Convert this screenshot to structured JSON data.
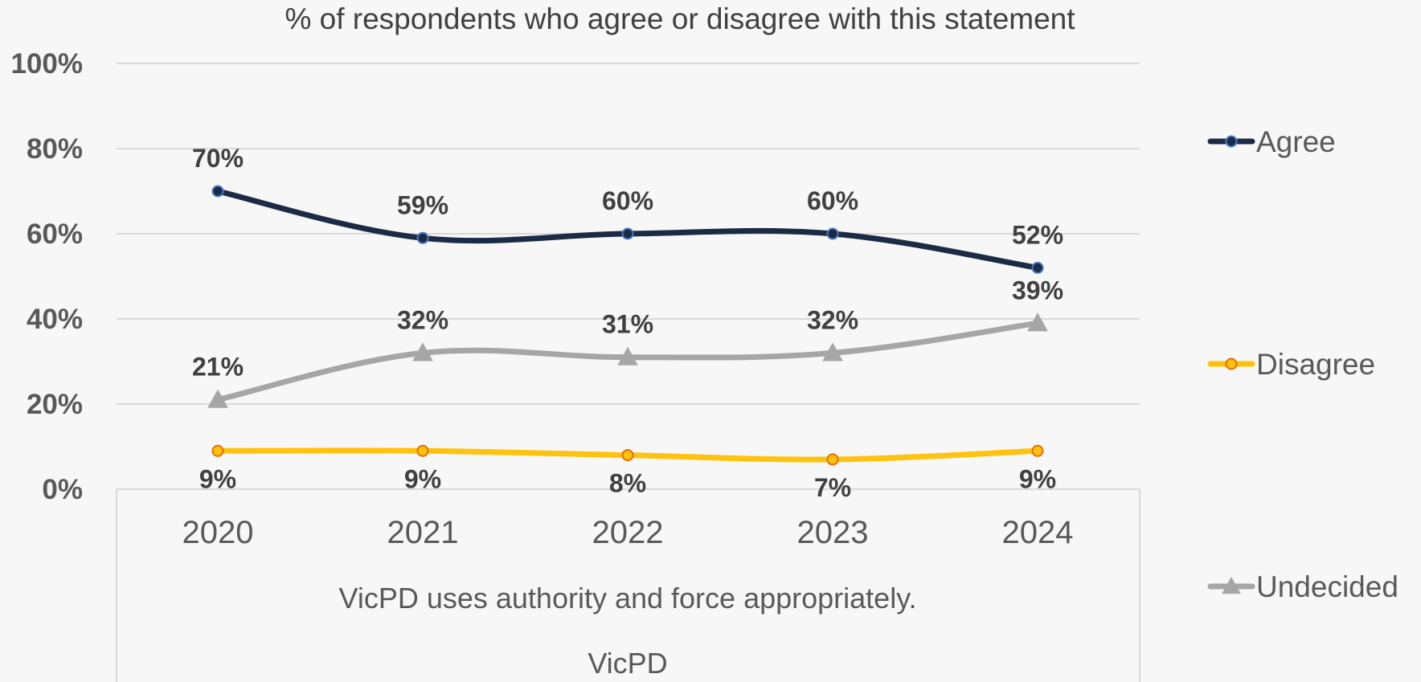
{
  "chart_data": {
    "type": "line",
    "title": "% of respondents who agree or disagree with this statement",
    "x": [
      "2020",
      "2021",
      "2022",
      "2023",
      "2024"
    ],
    "x_group_label": "VicPD uses authority and force appropriately.",
    "x_outer_label": "VicPD",
    "ylim": [
      0,
      100
    ],
    "y_ticks": [
      "0%",
      "20%",
      "40%",
      "60%",
      "80%",
      "100%"
    ],
    "grid": true,
    "legend_position": "right",
    "series": [
      {
        "name": "Agree",
        "values": [
          70,
          59,
          60,
          60,
          52
        ],
        "labels": [
          "70%",
          "59%",
          "60%",
          "60%",
          "52%"
        ],
        "color": "#1c2b45",
        "marker": "circle",
        "label_position": "above"
      },
      {
        "name": "Disagree",
        "values": [
          9,
          9,
          8,
          7,
          9
        ],
        "labels": [
          "9%",
          "9%",
          "8%",
          "7%",
          "9%"
        ],
        "color": "#ffc20e",
        "marker": "circle",
        "label_position": "below"
      },
      {
        "name": "Undecided",
        "values": [
          21,
          32,
          31,
          32,
          39
        ],
        "labels": [
          "21%",
          "32%",
          "31%",
          "32%",
          "39%"
        ],
        "color": "#a6a6a6",
        "marker": "triangle",
        "label_position": "above"
      }
    ]
  }
}
